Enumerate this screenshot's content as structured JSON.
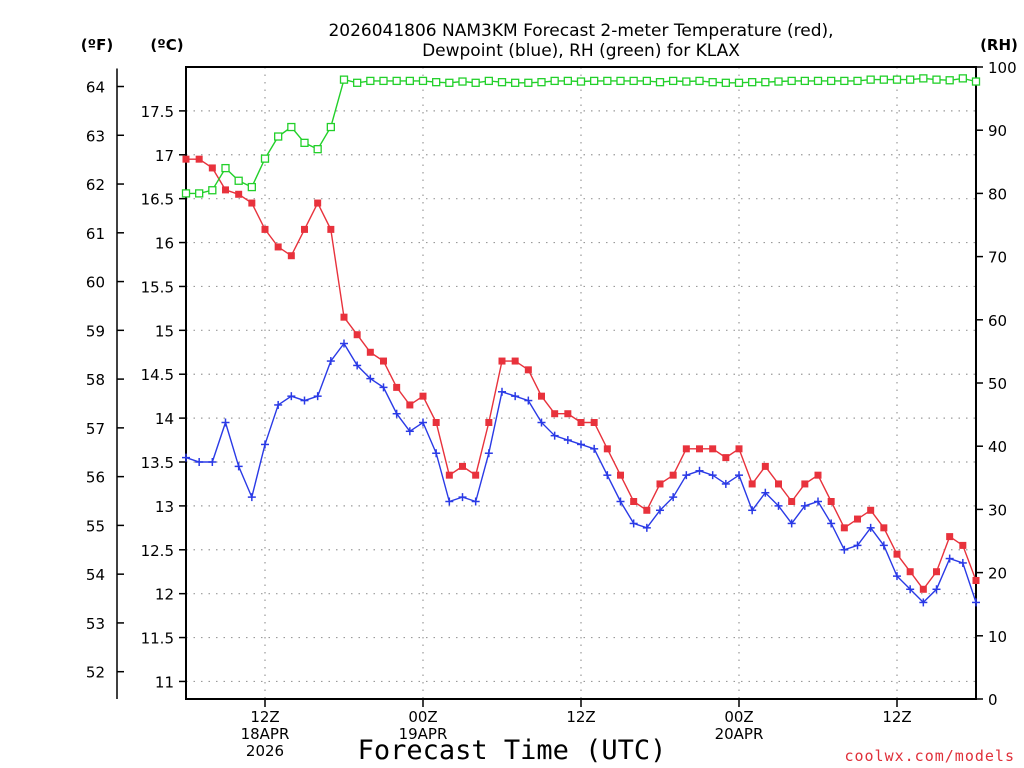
{
  "chart_data": {
    "type": "line",
    "title": [
      "2026041806 NAM3KM Forecast 2-meter Temperature (red),",
      "Dewpoint (blue), RH (green) for KLAX"
    ],
    "xlabel": "Forecast Time (UTC)",
    "units": {
      "fahrenheit": "(ºF)",
      "celsius": "(ºC)",
      "rh": "(RH)"
    },
    "credit": "coolwx.com/models",
    "x": {
      "start": "2026-04-18T06:00Z",
      "step_hours": 1,
      "range_hours": [
        0,
        60
      ],
      "tick_labels": [
        {
          "hour": 6,
          "lines": [
            "12Z",
            "18APR",
            "2026"
          ]
        },
        {
          "hour": 18,
          "lines": [
            "00Z",
            "19APR"
          ]
        },
        {
          "hour": 30,
          "lines": [
            "12Z"
          ]
        },
        {
          "hour": 42,
          "lines": [
            "00Z",
            "20APR"
          ]
        },
        {
          "hour": 54,
          "lines": [
            "12Z"
          ]
        }
      ]
    },
    "y_celsius": {
      "range": [
        10.8,
        18.0
      ],
      "ticks": [
        11,
        11.5,
        12,
        12.5,
        13,
        13.5,
        14,
        14.5,
        15,
        15.5,
        16,
        16.5,
        17,
        17.5
      ]
    },
    "y_fahrenheit": {
      "ticks": [
        52,
        53,
        54,
        55,
        56,
        57,
        58,
        59,
        60,
        61,
        62,
        63,
        64
      ]
    },
    "y_rh": {
      "range": [
        0,
        100
      ],
      "ticks": [
        0,
        10,
        20,
        30,
        40,
        50,
        60,
        70,
        80,
        90,
        100
      ]
    },
    "grid": true,
    "series": [
      {
        "name": "Temperature",
        "color": "#e8323c",
        "marker": "filled-square",
        "values": [
          16.95,
          16.95,
          16.85,
          16.6,
          16.55,
          16.45,
          16.15,
          15.95,
          15.85,
          16.15,
          16.45,
          16.15,
          15.15,
          14.95,
          14.75,
          14.65,
          14.35,
          14.15,
          14.25,
          13.95,
          13.35,
          13.45,
          13.35,
          13.95,
          14.65,
          14.65,
          14.55,
          14.25,
          14.05,
          14.05,
          13.95,
          13.95,
          13.65,
          13.35,
          13.05,
          12.95,
          13.25,
          13.35,
          13.65,
          13.65,
          13.65,
          13.55,
          13.65,
          13.25,
          13.45,
          13.25,
          13.05,
          13.25,
          13.35,
          13.05,
          12.75,
          12.85,
          12.95,
          12.75,
          12.45,
          12.25,
          12.05,
          12.25,
          12.65,
          12.55,
          12.15
        ]
      },
      {
        "name": "Dewpoint",
        "color": "#2a3ae6",
        "marker": "plus",
        "values": [
          13.55,
          13.5,
          13.5,
          13.95,
          13.45,
          13.1,
          13.7,
          14.15,
          14.25,
          14.2,
          14.25,
          14.65,
          14.85,
          14.6,
          14.45,
          14.35,
          14.05,
          13.85,
          13.95,
          13.6,
          13.05,
          13.1,
          13.05,
          13.6,
          14.3,
          14.25,
          14.2,
          13.95,
          13.8,
          13.75,
          13.7,
          13.65,
          13.35,
          13.05,
          12.8,
          12.75,
          12.95,
          13.1,
          13.35,
          13.4,
          13.35,
          13.25,
          13.35,
          12.95,
          13.15,
          13.0,
          12.8,
          13.0,
          13.05,
          12.8,
          12.5,
          12.55,
          12.75,
          12.55,
          12.2,
          12.05,
          11.9,
          12.05,
          12.4,
          12.35,
          11.9
        ]
      },
      {
        "name": "RH",
        "color": "#22d02a",
        "marker": "open-square",
        "values": [
          80,
          80,
          80.5,
          84,
          82,
          81,
          85.5,
          89,
          90.5,
          88,
          87,
          90.5,
          98,
          97.5,
          97.8,
          97.8,
          97.8,
          97.8,
          97.8,
          97.6,
          97.5,
          97.7,
          97.5,
          97.8,
          97.6,
          97.5,
          97.5,
          97.6,
          97.8,
          97.8,
          97.7,
          97.8,
          97.8,
          97.8,
          97.8,
          97.8,
          97.6,
          97.8,
          97.7,
          97.8,
          97.6,
          97.5,
          97.5,
          97.6,
          97.6,
          97.7,
          97.8,
          97.8,
          97.8,
          97.8,
          97.8,
          97.8,
          98.0,
          98.0,
          98.0,
          98.0,
          98.2,
          98.0,
          97.9,
          98.2,
          97.7
        ]
      }
    ]
  }
}
